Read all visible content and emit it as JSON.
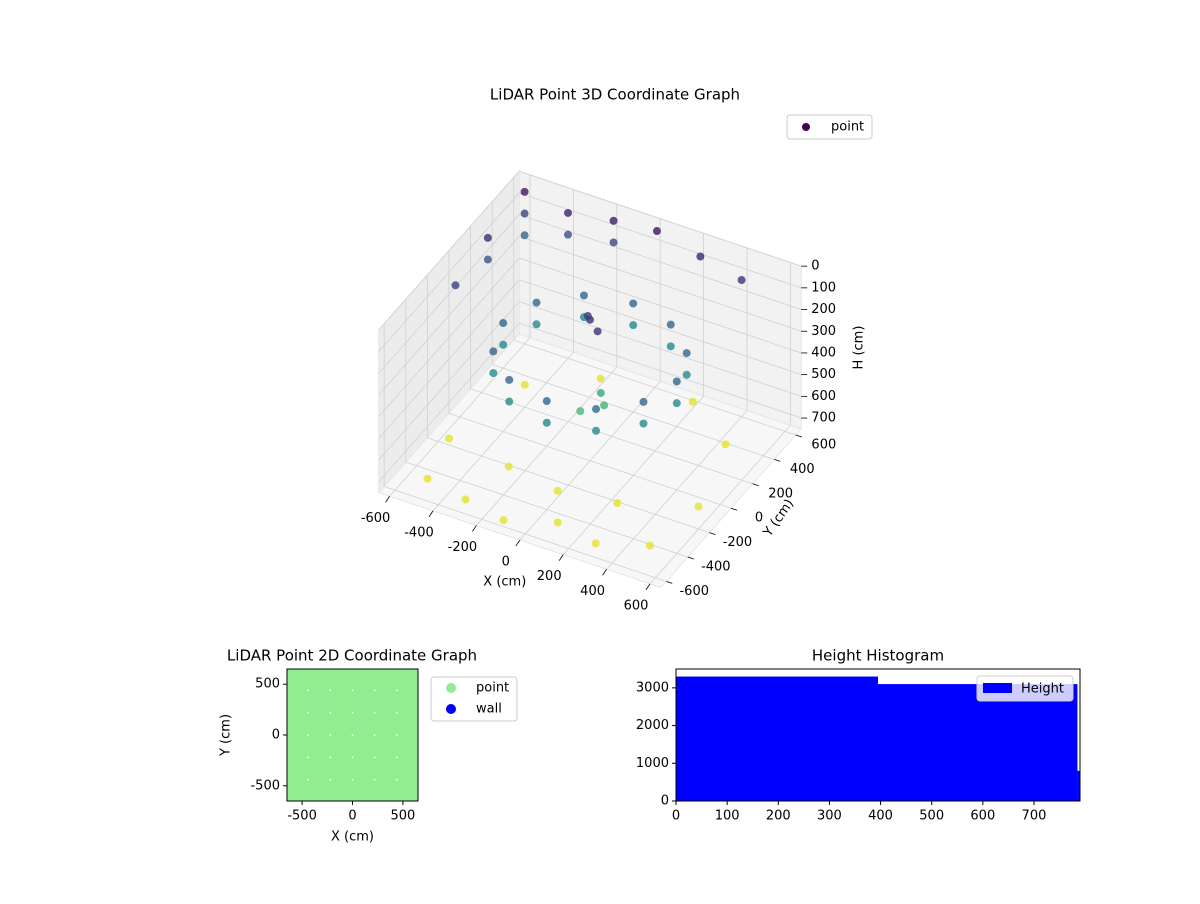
{
  "chart_data": [
    {
      "type": "scatter3d",
      "title": "LiDAR Point 3D Coordinate Graph",
      "xlabel": "X (cm)",
      "ylabel": "Y (cm)",
      "zlabel": "H (cm)",
      "xlim": [
        -650,
        650
      ],
      "ylim": [
        -650,
        650
      ],
      "zlim": [
        0,
        750
      ],
      "zinverted": true,
      "xticks": [
        -600,
        -400,
        -200,
        0,
        200,
        400,
        600
      ],
      "yticks": [
        -600,
        -400,
        -200,
        0,
        200,
        400,
        600
      ],
      "zticks": [
        0,
        100,
        200,
        300,
        400,
        500,
        600,
        700
      ],
      "cmap": "viridis",
      "legend": "upper right",
      "grid": true,
      "series": [
        {
          "name": "point",
          "x": [
            400,
            346,
            200,
            0,
            -200,
            -346,
            -400,
            -346,
            -200,
            0,
            200,
            346,
            400,
            346,
            200,
            0,
            -200,
            -346,
            -400,
            -346,
            -200,
            0,
            200,
            346,
            0,
            50,
            -40,
            30,
            -20,
            60,
            -500,
            -300,
            -100,
            100,
            300,
            500,
            -550,
            550,
            -450,
            450,
            -200,
            200,
            0,
            250,
            -250,
            -600,
            -600,
            -600,
            -400,
            -400,
            -200,
            -200,
            0,
            200,
            400,
            -620,
            -620,
            -620
          ],
          "y": [
            0,
            200,
            346,
            400,
            346,
            200,
            0,
            -200,
            -346,
            -400,
            -346,
            -200,
            0,
            200,
            346,
            400,
            346,
            200,
            0,
            -200,
            -346,
            -400,
            -346,
            -200,
            0,
            -30,
            60,
            40,
            -50,
            10,
            -500,
            -550,
            -600,
            -500,
            -550,
            -450,
            -200,
            -100,
            300,
            350,
            500,
            550,
            -300,
            -250,
            -250,
            600,
            600,
            600,
            600,
            600,
            620,
            620,
            620,
            620,
            600,
            300,
            300,
            0
          ],
          "z": [
            250,
            250,
            250,
            250,
            250,
            250,
            250,
            250,
            250,
            250,
            250,
            250,
            350,
            350,
            350,
            350,
            350,
            350,
            350,
            350,
            350,
            350,
            350,
            350,
            100,
            120,
            130,
            450,
            500,
            480,
            720,
            720,
            720,
            720,
            720,
            720,
            720,
            720,
            720,
            720,
            720,
            720,
            720,
            720,
            720,
            50,
            150,
            250,
            80,
            180,
            60,
            160,
            40,
            90,
            120,
            100,
            200,
            150
          ]
        }
      ]
    },
    {
      "type": "scatter",
      "title": "LiDAR Point 2D Coordinate Graph",
      "xlabel": "X (cm)",
      "ylabel": "Y (cm)",
      "xlim": [
        -650,
        650
      ],
      "ylim": [
        -650,
        650
      ],
      "xticks": [
        -500,
        0,
        500
      ],
      "yticks": [
        -500,
        0,
        500
      ],
      "legend": "outside right",
      "series": [
        {
          "name": "point",
          "color": "#90ee90",
          "x": [
            -550,
            -330,
            -110,
            110,
            330,
            550,
            -550,
            -330,
            -110,
            110,
            330,
            550,
            -550,
            -330,
            -110,
            110,
            330,
            550,
            -550,
            -330,
            -110,
            110,
            330,
            550,
            -550,
            -330,
            -110,
            110,
            330,
            550,
            -550,
            -330,
            -110,
            110,
            330,
            550
          ],
          "y": [
            -550,
            -550,
            -550,
            -550,
            -550,
            -550,
            -330,
            -330,
            -330,
            -330,
            -330,
            -330,
            -110,
            -110,
            -110,
            -110,
            -110,
            -110,
            110,
            110,
            110,
            110,
            110,
            110,
            330,
            330,
            330,
            330,
            330,
            330,
            550,
            550,
            550,
            550,
            550,
            550
          ]
        },
        {
          "name": "wall",
          "color": "#0000ff",
          "x": [],
          "y": []
        }
      ]
    },
    {
      "type": "histogram",
      "title": "Height Histogram",
      "bins": [
        0,
        395,
        785,
        790
      ],
      "counts": [
        3300,
        3100,
        800
      ],
      "name": "Height",
      "color": "#0000ff",
      "xlim": [
        0,
        790
      ],
      "ylim": [
        0,
        3500
      ],
      "xticks": [
        0,
        100,
        200,
        300,
        400,
        500,
        600,
        700
      ],
      "yticks": [
        0,
        1000,
        2000,
        3000
      ],
      "legend": "upper right"
    }
  ]
}
